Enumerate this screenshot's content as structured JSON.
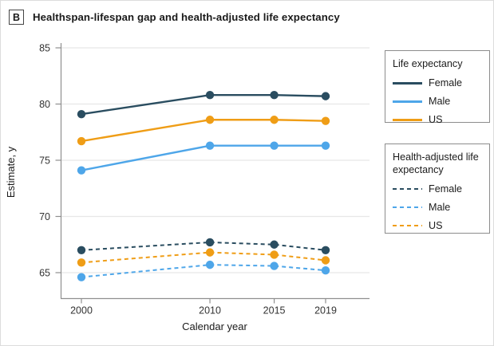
{
  "panel_label": "B",
  "title": "Healthspan-lifespan gap and health-adjusted life expectancy",
  "colors": {
    "female": "#2A4D60",
    "male": "#4EA6E9",
    "us": "#EF9D16",
    "grid": "#e7e7e7",
    "axis": "#8f8f8f"
  },
  "chart_data": {
    "type": "line",
    "x": [
      2000,
      2010,
      2015,
      2019
    ],
    "xlabel": "Calendar year",
    "ylabel": "Estimate, y",
    "ylim": [
      62.5,
      85
    ],
    "yticks": [
      65,
      70,
      75,
      80,
      85
    ],
    "grid": "horizontal",
    "series": [
      {
        "name": "Life expectancy Female",
        "group": "Life expectancy",
        "label": "Female",
        "style": "solid",
        "color_key": "female",
        "values": [
          79.1,
          80.8,
          80.8,
          80.7
        ]
      },
      {
        "name": "Life expectancy Male",
        "group": "Life expectancy",
        "label": "Male",
        "style": "solid",
        "color_key": "male",
        "values": [
          74.1,
          76.3,
          76.3,
          76.3
        ]
      },
      {
        "name": "Life expectancy US",
        "group": "Life expectancy",
        "label": "US",
        "style": "solid",
        "color_key": "us",
        "values": [
          76.7,
          78.6,
          78.6,
          78.5
        ]
      },
      {
        "name": "Health-adjusted life expectancy Female",
        "group": "Health-adjusted life expectancy",
        "label": "Female",
        "style": "dashed",
        "color_key": "female",
        "values": [
          67.0,
          67.7,
          67.5,
          67.0
        ]
      },
      {
        "name": "Health-adjusted life expectancy Male",
        "group": "Health-adjusted life expectancy",
        "label": "Male",
        "style": "dashed",
        "color_key": "male",
        "values": [
          64.6,
          65.7,
          65.6,
          65.2
        ]
      },
      {
        "name": "Health-adjusted life expectancy US",
        "group": "Health-adjusted life expectancy",
        "label": "US",
        "style": "dashed",
        "color_key": "us",
        "values": [
          65.9,
          66.8,
          66.6,
          66.1
        ]
      }
    ],
    "legends": [
      {
        "title": "Life expectancy",
        "style": "solid",
        "items": [
          {
            "label": "Female",
            "color_key": "female"
          },
          {
            "label": "Male",
            "color_key": "male"
          },
          {
            "label": "US",
            "color_key": "us"
          }
        ]
      },
      {
        "title": "Health-adjusted life expectancy",
        "style": "dashed",
        "items": [
          {
            "label": "Female",
            "color_key": "female"
          },
          {
            "label": "Male",
            "color_key": "male"
          },
          {
            "label": "US",
            "color_key": "us"
          }
        ]
      }
    ]
  }
}
